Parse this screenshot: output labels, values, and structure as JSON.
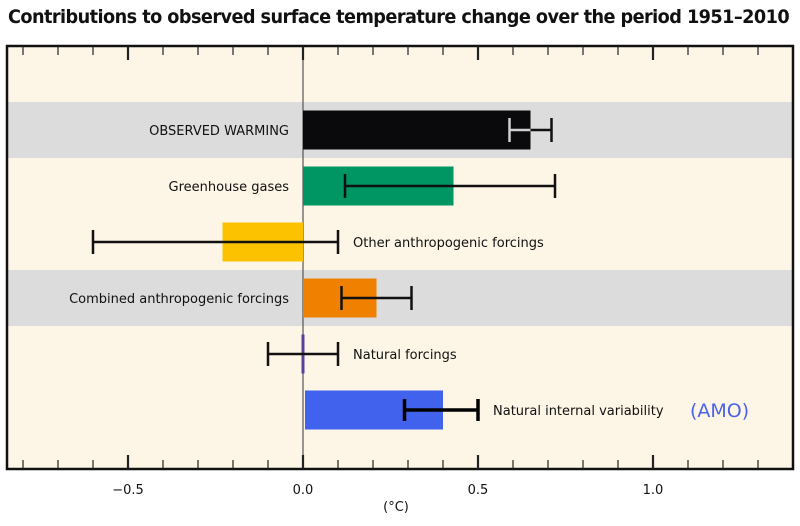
{
  "title": "Contributions to observed surface temperature change over the period 1951–2010",
  "chart_data": {
    "type": "bar",
    "orientation": "horizontal",
    "title": "Contributions to observed surface temperature change over the period 1951–2010",
    "xlabel": "(°C)",
    "ylabel": "",
    "xlim": [
      -0.85,
      1.4
    ],
    "xticks": [
      -0.5,
      0.0,
      0.5,
      1.0
    ],
    "xtick_labels": [
      "−0.5",
      "0.0",
      "0.5",
      "1.0"
    ],
    "minor_tick_step": 0.1,
    "grid": false,
    "categories": [
      "OBSERVED WARMING",
      "Greenhouse gases",
      "Other anthropogenic forcings",
      "Combined anthropogenic forcings",
      "Natural forcings",
      "Natural internal variability"
    ],
    "bars": [
      {
        "label": "OBSERVED WARMING",
        "value": 0.65,
        "err_low": 0.59,
        "err_high": 0.71,
        "color": "#0a0a0c",
        "err_color": "#d0d0d0",
        "err_color_outside": "#111111",
        "label_side": "left",
        "band": true
      },
      {
        "label": "Greenhouse gases",
        "value": 0.43,
        "err_low": 0.12,
        "err_high": 0.72,
        "color": "#009664",
        "err_color": "#111111",
        "label_side": "left",
        "band": false
      },
      {
        "label": "Other anthropogenic forcings",
        "value": -0.23,
        "err_low": -0.6,
        "err_high": 0.1,
        "color": "#fcc200",
        "err_color": "#111111",
        "label_side": "right",
        "band": false
      },
      {
        "label": "Combined anthropogenic forcings",
        "value": 0.21,
        "err_low": 0.11,
        "err_high": 0.31,
        "color": "#f08000",
        "err_color": "#111111",
        "label_side": "left",
        "band": true
      },
      {
        "label": "Natural forcings",
        "value": 0.0,
        "err_low": -0.1,
        "err_high": 0.1,
        "color": "#5b3fa0",
        "err_color": "#111111",
        "label_side": "right",
        "band": false
      },
      {
        "label": "Natural internal variability",
        "value": 0.4,
        "err_low": 0.29,
        "err_high": 0.5,
        "color": "#4162ec",
        "err_color": "#000000",
        "label_side": "right",
        "band": false
      }
    ],
    "annotation": {
      "text": "(AMO)",
      "row": 5,
      "color": "#4a63e8"
    },
    "colors": {
      "background": "#fdf5e6",
      "band": "#dcdcdc",
      "frame": "#111111"
    }
  }
}
